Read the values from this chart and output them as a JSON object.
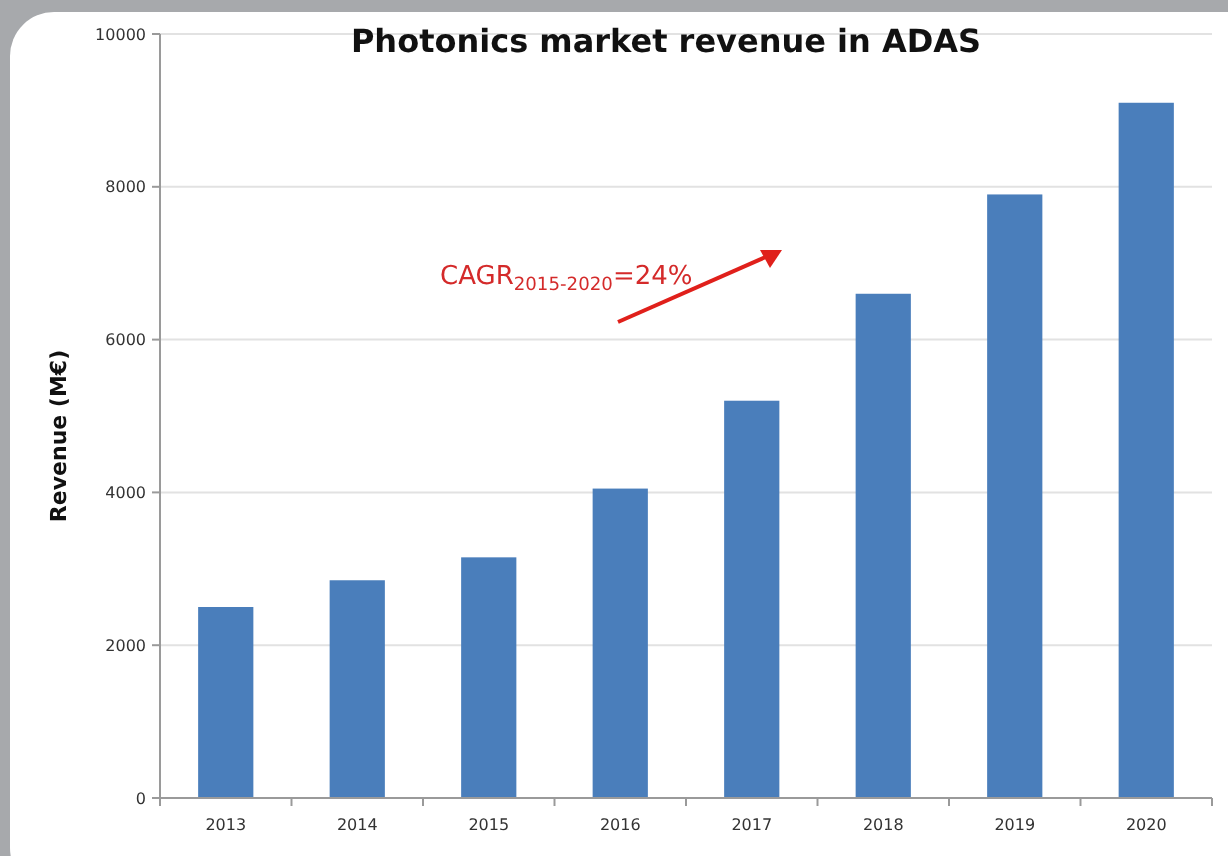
{
  "chart_data": {
    "type": "bar",
    "title": "Photonics market revenue in ADAS",
    "ylabel": "Revenue (M€)",
    "categories": [
      "2013",
      "2014",
      "2015",
      "2016",
      "2017",
      "2018",
      "2019",
      "2020"
    ],
    "values": [
      2500,
      2850,
      3150,
      4050,
      5200,
      6600,
      7900,
      9100
    ],
    "color": "#4a7ebb",
    "ylim": [
      0,
      10000
    ],
    "yticks": [
      0,
      2000,
      4000,
      6000,
      8000,
      10000
    ],
    "grid": "y",
    "annotations": [
      "CAGR$_{2015-2020}$=24%"
    ]
  }
}
